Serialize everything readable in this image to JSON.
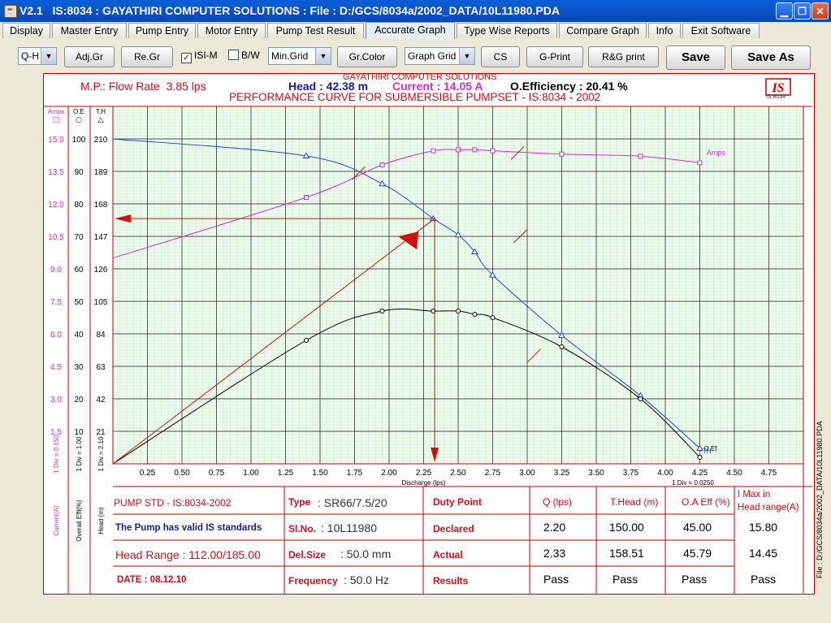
{
  "window": {
    "version": "V2.1",
    "title": "IS:8034 : GAYATHIRI COMPUTER SOLUTIONS : File : D:/GCS/8034a/2002_DATA/10L11980.PDA"
  },
  "menu": {
    "tabs": [
      "Display",
      "Master Entry",
      "Pump Entry",
      "Motor Entry",
      "Pump Test Result",
      "Accurate Graph",
      "Type Wise Reports",
      "Compare Graph",
      "Info",
      "Exit Software"
    ],
    "active": "Accurate Graph"
  },
  "toolbar": {
    "graph_type": "Q-H",
    "adj_gr": "Adj.Gr",
    "re_gr": "Re.Gr",
    "isi_m_label": "ISI-M",
    "isi_m_checked": true,
    "bw_label": "B/W",
    "bw_checked": false,
    "min_grid": "Min.Grid",
    "gr_color": "Gr.Color",
    "graph_grid": "Graph Grid",
    "cs": "CS",
    "g_print": "G-Print",
    "rg_print": "R&G print",
    "save": "Save",
    "save_as": "Save As"
  },
  "header": {
    "company": "GAYATHIRI COMPUTER SOLUTIONS",
    "mp_label": "M.P.: Flow Rate",
    "mp_value": "3.85 lps",
    "head_label": "Head",
    "head_value": ": 42.38 m",
    "current_label": "Current",
    "current_value": ": 14.05 A",
    "eff_label": "O.Efficiency",
    "eff_value": ": 20.41 %",
    "main_title": "PERFORMANCE CURVE FOR SUBMERSIBLE PUMPSET - IS:8034 - 2002",
    "logo_sub": "IS:8034"
  },
  "chart_data": {
    "type": "line",
    "xlabel": "Discharge (lps)",
    "x_ticks": [
      "0.25",
      "0.50",
      "0.75",
      "1.00",
      "1.25",
      "1.50",
      "1.75",
      "2.00",
      "2.25",
      "2.50",
      "2.75",
      "3.00",
      "3.25",
      "3.50",
      "3.75",
      "4.00",
      "4.25",
      "4.50",
      "4.75"
    ],
    "xlim": [
      0,
      5.0
    ],
    "x_div_note": "1 Div = 0.0250",
    "axes": [
      {
        "header": "Amps",
        "symbol": "□",
        "ticks": [
          "1.5",
          "3.0",
          "4.5",
          "6.0",
          "7.5",
          "9.0",
          "10.5",
          "12.0",
          "13.5",
          "15.0"
        ],
        "unit_label": "Current(A)",
        "div_note": "1 Div = 0.150",
        "ylim": [
          0,
          16.5
        ]
      },
      {
        "header": "O.E",
        "symbol": "○",
        "ticks": [
          "10",
          "20",
          "30",
          "40",
          "50",
          "60",
          "70",
          "80",
          "90",
          "100"
        ],
        "unit_label": "Overall Effi(%)",
        "div_note": "1 Div = 1.00",
        "ylim": [
          0,
          110
        ]
      },
      {
        "header": "T.H",
        "symbol": "△",
        "ticks": [
          "21",
          "42",
          "63",
          "84",
          "105",
          "126",
          "147",
          "168",
          "189",
          "210"
        ],
        "unit_label": "Head (m)",
        "div_note": "1 Div = 2.10",
        "ylim": [
          0,
          231
        ]
      }
    ],
    "series": [
      {
        "name": "Amps",
        "color": "#cc33cc",
        "marker": "square",
        "x": [
          0.0,
          1.4,
          1.95,
          2.32,
          2.5,
          2.62,
          2.75,
          3.25,
          3.82,
          4.25
        ],
        "y": [
          9.5,
          12.3,
          13.8,
          14.45,
          14.5,
          14.5,
          14.45,
          14.3,
          14.2,
          13.9
        ]
      },
      {
        "name": "Head",
        "color": "#2244cc",
        "marker": "triangle",
        "x": [
          0.0,
          1.4,
          1.95,
          2.32,
          2.5,
          2.62,
          2.75,
          3.25,
          3.82,
          4.25
        ],
        "y": [
          210,
          199,
          181,
          158.5,
          148,
          137,
          122,
          83,
          44,
          10
        ]
      },
      {
        "name": "Eff",
        "color": "#000000",
        "marker": "circle",
        "x": [
          0.0,
          1.4,
          1.95,
          2.32,
          2.5,
          2.62,
          2.75,
          3.25,
          3.82,
          4.25
        ],
        "y": [
          0,
          38,
          47,
          47,
          47,
          46,
          45,
          36,
          20,
          2
        ]
      }
    ],
    "annotations": {
      "amps_label": "Amps",
      "eff_label": "O.Ef",
      "head_label": "TH"
    },
    "duty_point": {
      "x": 2.33,
      "head": 158.51
    },
    "grid": true
  },
  "table": {
    "pump_std": "PUMP STD - IS:8034-2002",
    "valid_text": "The Pump has valid IS standards",
    "head_range": "Head Range : 112.00/185.00",
    "date": "DATE : 08.12.10",
    "type_label": "Type",
    "type_value": ": SR66/7.5/20",
    "slno_label": "Sl.No.",
    "slno_value": ": 10L11980",
    "delsize_label": "Del.Size",
    "delsize_value": ": 50.0 mm",
    "freq_label": "Frequency",
    "freq_value": ": 50.0 Hz",
    "headers": {
      "duty": "Duty Point",
      "q": "Q (lps)",
      "thead": "T.Head (m)",
      "eff": "O.A Eff (%)",
      "imax1": "I Max in",
      "imax2": "Head range(A)"
    },
    "rows": [
      {
        "label": "Declared",
        "q": "2.20",
        "thead": "150.00",
        "eff": "45.00",
        "imax": "15.80"
      },
      {
        "label": "Actual",
        "q": "2.33",
        "thead": "158.51",
        "eff": "45.79",
        "imax": "14.45"
      },
      {
        "label": "Results",
        "q": "Pass",
        "thead": "Pass",
        "eff": "Pass",
        "imax": "Pass"
      }
    ]
  },
  "side_file": "File : D:/GCS/8034a/2002_DATA/10L11980.PDA"
}
